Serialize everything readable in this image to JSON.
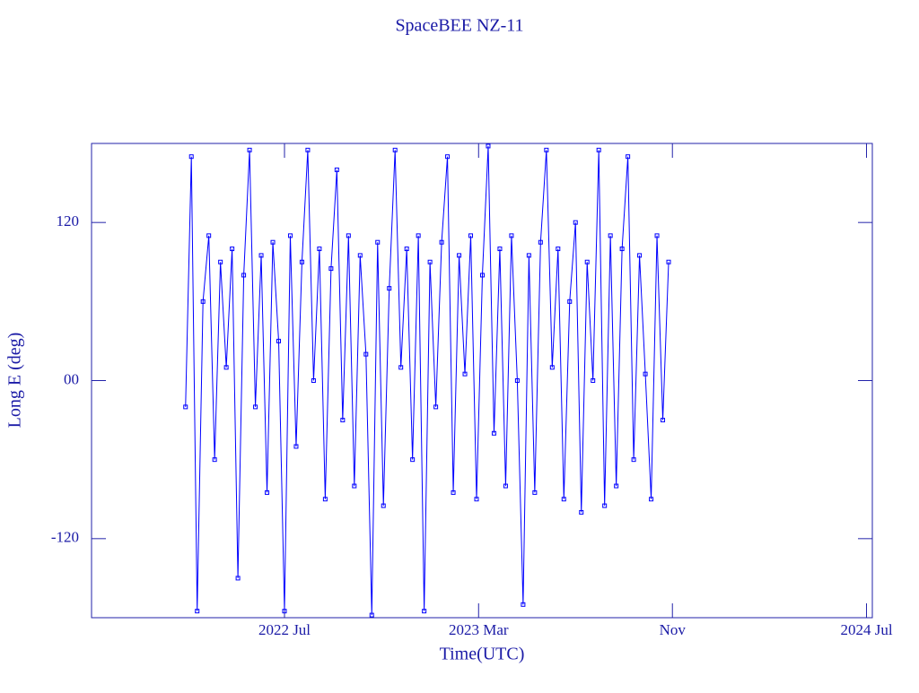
{
  "chart_data": {
    "type": "line",
    "title": "SpaceBEE NZ-11",
    "x_label": "Time(UTC)",
    "y_label": "Long E (deg)",
    "color": "#0000ff",
    "markers": true,
    "xlim": [
      2021.837,
      2024.52
    ],
    "xticks": [
      {
        "value": 2022.5,
        "label": "2022 Jul"
      },
      {
        "value": 2023.167,
        "label": "2023 Mar"
      },
      {
        "value": 2023.833,
        "label": "Nov"
      },
      {
        "value": 2024.5,
        "label": "2024 Jul"
      }
    ],
    "ylim": [
      -180,
      180
    ],
    "yticks": [
      {
        "value": 120,
        "label": "120"
      },
      {
        "value": 0,
        "label": "00"
      },
      {
        "value": -120,
        "label": "-120"
      }
    ],
    "x": [
      2022.16,
      2022.18,
      2022.2,
      2022.22,
      2022.24,
      2022.26,
      2022.28,
      2022.3,
      2022.32,
      2022.34,
      2022.36,
      2022.38,
      2022.4,
      2022.42,
      2022.44,
      2022.46,
      2022.48,
      2022.5,
      2022.52,
      2022.54,
      2022.56,
      2022.58,
      2022.6,
      2022.62,
      2022.64,
      2022.66,
      2022.68,
      2022.7,
      2022.72,
      2022.74,
      2022.76,
      2022.78,
      2022.8,
      2022.82,
      2022.84,
      2022.86,
      2022.88,
      2022.9,
      2022.92,
      2022.94,
      2022.96,
      2022.98,
      2023,
      2023.02,
      2023.04,
      2023.06,
      2023.08,
      2023.1,
      2023.12,
      2023.14,
      2023.16,
      2023.18,
      2023.2,
      2023.22,
      2023.24,
      2023.26,
      2023.28,
      2023.3,
      2023.32,
      2023.34,
      2023.36,
      2023.38,
      2023.4,
      2023.42,
      2023.44,
      2023.46,
      2023.48,
      2023.5,
      2023.52,
      2023.54,
      2023.56,
      2023.58,
      2023.6,
      2023.62,
      2023.64,
      2023.66,
      2023.68,
      2023.7,
      2023.72,
      2023.74,
      2023.76,
      2023.78,
      2023.8,
      2023.82
    ],
    "values": [
      -20,
      170,
      -175,
      60,
      110,
      -60,
      90,
      10,
      100,
      -150,
      80,
      175,
      -20,
      95,
      -85,
      105,
      30,
      -175,
      110,
      -50,
      90,
      175,
      0,
      100,
      -90,
      85,
      160,
      -30,
      110,
      -80,
      95,
      20,
      -178,
      105,
      -95,
      70,
      175,
      10,
      100,
      -60,
      110,
      -175,
      90,
      -20,
      105,
      170,
      -85,
      95,
      5,
      110,
      -90,
      80,
      178,
      -40,
      100,
      -80,
      110,
      0,
      -170,
      95,
      -85,
      105,
      175,
      10,
      100,
      -90,
      60,
      120,
      -100,
      90,
      0,
      175,
      -95,
      110,
      -80,
      100,
      170,
      -60,
      95,
      5,
      -90,
      110,
      -30,
      90
    ]
  }
}
